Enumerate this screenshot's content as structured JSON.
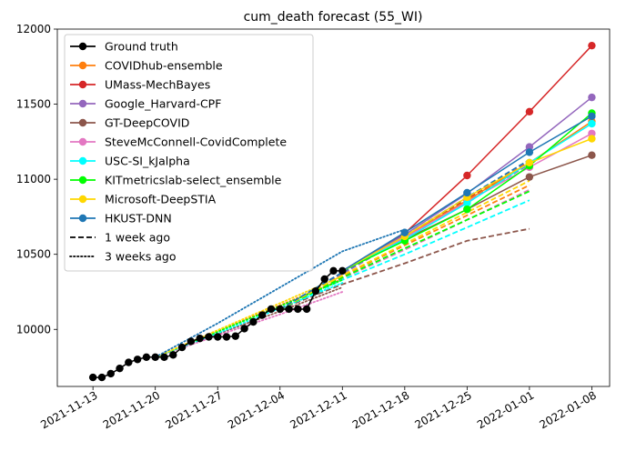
{
  "chart_data": {
    "type": "line",
    "title": "cum_death forecast (55_WI)",
    "xlabel": "",
    "ylabel": "",
    "x_range": [
      "2021-11-09",
      "2022-01-10"
    ],
    "ylim": [
      9620,
      12000
    ],
    "x_ticks": [
      "2021-11-13",
      "2021-11-20",
      "2021-11-27",
      "2021-12-04",
      "2021-12-11",
      "2021-12-18",
      "2021-12-25",
      "2022-01-01",
      "2022-01-08"
    ],
    "y_ticks": [
      10000,
      10500,
      11000,
      11500,
      12000
    ],
    "grid": false,
    "legend_position": "top-left",
    "ground_truth": {
      "name": "Ground truth",
      "color": "#000000",
      "points": [
        [
          "2021-11-13",
          9680
        ],
        [
          "2021-11-14",
          9680
        ],
        [
          "2021-11-15",
          9705
        ],
        [
          "2021-11-16",
          9740
        ],
        [
          "2021-11-17",
          9780
        ],
        [
          "2021-11-18",
          9800
        ],
        [
          "2021-11-19",
          9815
        ],
        [
          "2021-11-20",
          9815
        ],
        [
          "2021-11-21",
          9815
        ],
        [
          "2021-11-22",
          9830
        ],
        [
          "2021-11-23",
          9880
        ],
        [
          "2021-11-24",
          9920
        ],
        [
          "2021-11-25",
          9940
        ],
        [
          "2021-11-26",
          9950
        ],
        [
          "2021-11-27",
          9950
        ],
        [
          "2021-11-28",
          9950
        ],
        [
          "2021-11-29",
          9955
        ],
        [
          "2021-11-30",
          10005
        ],
        [
          "2021-12-01",
          10050
        ],
        [
          "2021-12-02",
          10095
        ],
        [
          "2021-12-03",
          10135
        ],
        [
          "2021-12-04",
          10135
        ],
        [
          "2021-12-05",
          10135
        ],
        [
          "2021-12-06",
          10135
        ],
        [
          "2021-12-07",
          10135
        ],
        [
          "2021-12-08",
          10255
        ],
        [
          "2021-12-09",
          10335
        ],
        [
          "2021-12-10",
          10390
        ],
        [
          "2021-12-11",
          10390
        ]
      ]
    },
    "series": [
      {
        "name": "COVIDhub-ensemble",
        "color": "#ff7f0e",
        "current": [
          [
            "2021-12-11",
            10390
          ],
          [
            "2021-12-18",
            10615
          ],
          [
            "2021-12-25",
            10860
          ],
          [
            "2022-01-01",
            11110
          ],
          [
            "2022-01-08",
            11385
          ]
        ],
        "week1": [
          [
            "2021-12-04",
            10135
          ],
          [
            "2021-12-11",
            10355
          ],
          [
            "2021-12-18",
            10560
          ],
          [
            "2021-12-25",
            10760
          ],
          [
            "2022-01-01",
            10960
          ]
        ],
        "week3": [
          [
            "2021-11-20",
            9815
          ],
          [
            "2021-11-27",
            9990
          ],
          [
            "2021-12-04",
            10160
          ],
          [
            "2021-12-11",
            10335
          ]
        ]
      },
      {
        "name": "UMass-MechBayes",
        "color": "#d62728",
        "current": [
          [
            "2021-12-11",
            10390
          ],
          [
            "2021-12-18",
            10640
          ],
          [
            "2021-12-25",
            11025
          ],
          [
            "2022-01-01",
            11450
          ],
          [
            "2022-01-08",
            11890
          ]
        ],
        "week1": [
          [
            "2021-12-04",
            10135
          ],
          [
            "2021-12-11",
            10375
          ],
          [
            "2021-12-18",
            10620
          ],
          [
            "2021-12-25",
            10870
          ],
          [
            "2022-01-01",
            11115
          ]
        ],
        "week3": []
      },
      {
        "name": "Google_Harvard-CPF",
        "color": "#9467bd",
        "current": [
          [
            "2021-12-11",
            10390
          ],
          [
            "2021-12-18",
            10630
          ],
          [
            "2021-12-25",
            10905
          ],
          [
            "2022-01-01",
            11215
          ],
          [
            "2022-01-08",
            11545
          ]
        ],
        "week1": [
          [
            "2021-12-04",
            10135
          ],
          [
            "2021-12-11",
            10370
          ],
          [
            "2021-12-18",
            10610
          ],
          [
            "2021-12-25",
            10850
          ],
          [
            "2022-01-01",
            11100
          ]
        ],
        "week3": []
      },
      {
        "name": "GT-DeepCOVID",
        "color": "#8c564b",
        "current": [
          [
            "2021-12-11",
            10390
          ],
          [
            "2021-12-18",
            10600
          ],
          [
            "2021-12-25",
            10800
          ],
          [
            "2022-01-01",
            11015
          ],
          [
            "2022-01-08",
            11160
          ]
        ],
        "week1": [
          [
            "2021-12-04",
            10135
          ],
          [
            "2021-12-11",
            10300
          ],
          [
            "2021-12-18",
            10440
          ],
          [
            "2021-12-25",
            10590
          ],
          [
            "2022-01-01",
            10670
          ]
        ],
        "week3": [
          [
            "2021-11-20",
            9815
          ],
          [
            "2021-11-27",
            9970
          ],
          [
            "2021-12-04",
            10120
          ],
          [
            "2021-12-11",
            10280
          ]
        ]
      },
      {
        "name": "SteveMcConnell-CovidComplete",
        "color": "#e377c2",
        "current": [
          [
            "2021-12-11",
            10390
          ],
          [
            "2021-12-18",
            10610
          ],
          [
            "2021-12-25",
            10850
          ],
          [
            "2022-01-01",
            11080
          ],
          [
            "2022-01-08",
            11305
          ]
        ],
        "week1": [
          [
            "2021-12-04",
            10135
          ],
          [
            "2021-12-11",
            10340
          ],
          [
            "2021-12-18",
            10530
          ],
          [
            "2021-12-25",
            10730
          ],
          [
            "2022-01-01",
            10930
          ]
        ],
        "week3": [
          [
            "2021-11-20",
            9815
          ],
          [
            "2021-11-27",
            9960
          ],
          [
            "2021-12-04",
            10100
          ],
          [
            "2021-12-11",
            10250
          ]
        ]
      },
      {
        "name": "USC-SI_kJalpha",
        "color": "#00ffff",
        "current": [
          [
            "2021-12-11",
            10390
          ],
          [
            "2021-12-18",
            10600
          ],
          [
            "2021-12-25",
            10840
          ],
          [
            "2022-01-01",
            11110
          ],
          [
            "2022-01-08",
            11370
          ]
        ],
        "week1": [
          [
            "2021-12-04",
            10135
          ],
          [
            "2021-12-11",
            10330
          ],
          [
            "2021-12-18",
            10500
          ],
          [
            "2021-12-25",
            10680
          ],
          [
            "2022-01-01",
            10860
          ]
        ],
        "week3": [
          [
            "2021-11-20",
            9815
          ],
          [
            "2021-11-27",
            9975
          ],
          [
            "2021-12-04",
            10140
          ],
          [
            "2021-12-11",
            10310
          ]
        ]
      },
      {
        "name": "KITmetricslab-select_ensemble",
        "color": "#00ff00",
        "current": [
          [
            "2021-12-11",
            10390
          ],
          [
            "2021-12-18",
            10590
          ],
          [
            "2021-12-25",
            10800
          ],
          [
            "2022-01-01",
            11090
          ],
          [
            "2022-01-08",
            11440
          ]
        ],
        "week1": [
          [
            "2021-12-04",
            10135
          ],
          [
            "2021-12-11",
            10345
          ],
          [
            "2021-12-18",
            10540
          ],
          [
            "2021-12-25",
            10730
          ],
          [
            "2022-01-01",
            10920
          ]
        ],
        "week3": [
          [
            "2021-11-20",
            9815
          ],
          [
            "2021-11-27",
            9985
          ],
          [
            "2021-12-04",
            10155
          ],
          [
            "2021-12-11",
            10330
          ]
        ]
      },
      {
        "name": "Microsoft-DeepSTIA",
        "color": "#ffd700",
        "current": [
          [
            "2021-12-11",
            10390
          ],
          [
            "2021-12-18",
            10620
          ],
          [
            "2021-12-25",
            10880
          ],
          [
            "2022-01-01",
            11110
          ],
          [
            "2022-01-08",
            11270
          ]
        ],
        "week1": [
          [
            "2021-12-04",
            10135
          ],
          [
            "2021-12-11",
            10360
          ],
          [
            "2021-12-18",
            10570
          ],
          [
            "2021-12-25",
            10780
          ],
          [
            "2022-01-01",
            10990
          ]
        ],
        "week3": [
          [
            "2021-11-20",
            9815
          ],
          [
            "2021-11-27",
            9995
          ],
          [
            "2021-12-04",
            10175
          ],
          [
            "2021-12-11",
            10355
          ]
        ]
      },
      {
        "name": "HKUST-DNN",
        "color": "#1f77b4",
        "current": [
          [
            "2021-12-11",
            10390
          ],
          [
            "2021-12-18",
            10645
          ],
          [
            "2021-12-25",
            10910
          ],
          [
            "2022-01-01",
            11180
          ],
          [
            "2022-01-08",
            11420
          ]
        ],
        "week1": [
          [
            "2021-12-04",
            10135
          ],
          [
            "2021-12-11",
            10380
          ],
          [
            "2021-12-18",
            10620
          ],
          [
            "2021-12-25",
            10880
          ],
          [
            "2022-01-01",
            11130
          ]
        ],
        "week3": [
          [
            "2021-11-20",
            9815
          ],
          [
            "2021-11-27",
            10040
          ],
          [
            "2021-12-04",
            10280
          ],
          [
            "2021-12-11",
            10520
          ],
          [
            "2021-12-18",
            10665
          ]
        ]
      }
    ],
    "style_legend": [
      {
        "label": "1 week ago",
        "dash": "dashed"
      },
      {
        "label": "3 weeks ago",
        "dash": "dotted"
      }
    ]
  }
}
